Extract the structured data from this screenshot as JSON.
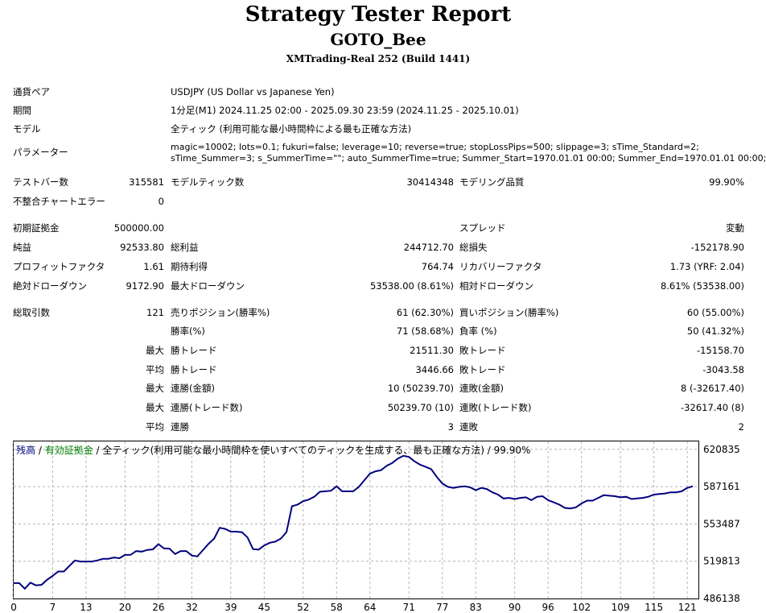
{
  "report": {
    "title": "Strategy Tester Report",
    "ea_name": "GOTO_Bee",
    "server": "XMTrading-Real 252 (Build 1441)"
  },
  "info": {
    "symbol_label": "通貨ペア",
    "symbol_value": "USDJPY (US Dollar vs Japanese Yen)",
    "period_label": "期間",
    "period_value": "1分足(M1) 2024.11.25 02:00 - 2025.09.30 23:59 (2024.11.25 - 2025.10.01)",
    "model_label": "モデル",
    "model_value": "全ティック (利用可能な最小時間枠による最も正確な方法)",
    "params_label": "パラメーター",
    "params_line1": "magic=10002; lots=0.1; fukuri=false; leverage=10; reverse=true; stopLossPips=500; slippage=3; sTime_Standard=2;",
    "params_line2": "sTime_Summer=3; s_SummerTime=\"\"; auto_SummerTime=true; Summer_Start=1970.01.01 00:00; Summer_End=1970.01.01 00:00;"
  },
  "stats": {
    "bars_label": "テストバー数",
    "bars_value": "315581",
    "ticks_label": "モデルティック数",
    "ticks_value": "30414348",
    "quality_label": "モデリング品質",
    "quality_value": "99.90%",
    "mismatch_label": "不整合チャートエラー",
    "mismatch_value": "0",
    "deposit_label": "初期証拠金",
    "deposit_value": "500000.00",
    "spread_label": "スプレッド",
    "spread_value": "変動",
    "net_label": "純益",
    "net_value": "92533.80",
    "gross_profit_label": "総利益",
    "gross_profit_value": "244712.70",
    "gross_loss_label": "総損失",
    "gross_loss_value": "-152178.90",
    "pf_label": "プロフィットファクタ",
    "pf_value": "1.61",
    "payoff_label": "期待利得",
    "payoff_value": "764.74",
    "recovery_label": "リカバリーファクタ",
    "recovery_value": "1.73 (YRF: 2.04)",
    "abs_dd_label": "絶対ドローダウン",
    "abs_dd_value": "9172.90",
    "max_dd_label": "最大ドローダウン",
    "max_dd_value": "53538.00 (8.61%)",
    "rel_dd_label": "相対ドローダウン",
    "rel_dd_value": "8.61% (53538.00)",
    "trades_label": "総取引数",
    "trades_value": "121",
    "short_label": "売りポジション(勝率%)",
    "short_value": "61 (62.30%)",
    "long_label": "買いポジション(勝率%)",
    "long_value": "60 (55.00%)",
    "win_rate_label": "勝率(%)",
    "win_rate_value": "71 (58.68%)",
    "loss_rate_label": "負率 (%)",
    "loss_rate_value": "50 (41.32%)",
    "max_word": "最大",
    "avg_word": "平均",
    "win_trade_label": "勝トレード",
    "loss_trade_label": "敗トレード",
    "max_win_value": "21511.30",
    "max_loss_value": "-15158.70",
    "avg_win_value": "3446.66",
    "avg_loss_value": "-3043.58",
    "cons_win_amt_label": "連勝(金額)",
    "cons_win_amt_value": "10 (50239.70)",
    "cons_loss_amt_label": "連敗(金額)",
    "cons_loss_amt_value": "8 (-32617.40)",
    "cons_win_cnt_label": "連勝(トレード数)",
    "cons_win_cnt_value": "50239.70 (10)",
    "cons_loss_cnt_label": "連敗(トレード数)",
    "cons_loss_cnt_value": "-32617.40 (8)",
    "avg_cons_win_label": "連勝",
    "avg_cons_win_value": "3",
    "avg_cons_loss_label": "連敗",
    "avg_cons_loss_value": "2"
  },
  "chart_data": {
    "type": "line",
    "legend": {
      "balance": "残高",
      "sep1": " / ",
      "equity": "有効証拠金",
      "sep2": " / ",
      "model": "全ティック(利用可能な最小時間枠を使いすべてのティックを生成する、最も正確な方法)",
      "sep3": " / ",
      "quality": "99.90%"
    },
    "colors": {
      "balance": "#00007f",
      "equity": "#008000",
      "grid": "#b4b4b4"
    },
    "ylim": [
      486138,
      628000
    ],
    "yticks": [
      "486138",
      "519813",
      "553487",
      "587161",
      "620835"
    ],
    "xlim": [
      0,
      123
    ],
    "xticks": [
      "0",
      "7",
      "13",
      "20",
      "26",
      "32",
      "39",
      "45",
      "52",
      "58",
      "64",
      "71",
      "77",
      "83",
      "90",
      "96",
      "102",
      "109",
      "115",
      "121"
    ],
    "x": [
      0,
      1,
      2,
      3,
      4,
      5,
      6,
      7,
      8,
      9,
      10,
      11,
      12,
      13,
      14,
      15,
      16,
      17,
      18,
      19,
      20,
      21,
      22,
      23,
      24,
      25,
      26,
      27,
      28,
      29,
      30,
      31,
      32,
      33,
      34,
      35,
      36,
      37,
      38,
      39,
      40,
      41,
      42,
      43,
      44,
      45,
      46,
      47,
      48,
      49,
      50,
      51,
      52,
      53,
      54,
      55,
      56,
      57,
      58,
      59,
      60,
      61,
      62,
      63,
      64,
      65,
      66,
      67,
      68,
      69,
      70,
      71,
      72,
      73,
      74,
      75,
      76,
      77,
      78,
      79,
      80,
      81,
      82,
      83,
      84,
      85,
      86,
      87,
      88,
      89,
      90,
      91,
      92,
      93,
      94,
      95,
      96,
      97,
      98,
      99,
      100,
      101,
      102,
      103,
      104,
      105,
      106,
      107,
      108,
      109,
      110,
      111,
      112,
      113,
      114,
      115,
      116,
      117,
      118,
      119,
      120,
      121,
      122
    ],
    "series": [
      {
        "values": [
          500000,
          500000,
          495000,
          500500,
          498000,
          498500,
          503000,
          506500,
          510500,
          510500,
          515500,
          520500,
          519500,
          519500,
          519500,
          520500,
          522000,
          522000,
          523200,
          522500,
          525500,
          525600,
          529000,
          528500,
          530000,
          530500,
          535200,
          531400,
          531200,
          526300,
          529000,
          529000,
          524900,
          524200,
          529800,
          535500,
          540200,
          550000,
          549000,
          546500,
          546500,
          546000,
          541300,
          530700,
          530300,
          534000,
          536500,
          537500,
          540300,
          546000,
          569500,
          571000,
          574000,
          575500,
          578000,
          582500,
          583000,
          583500,
          587500,
          583000,
          583000,
          583000,
          587000,
          593000,
          599000,
          601000,
          602000,
          606000,
          608500,
          612500,
          615000,
          614000,
          610000,
          607000,
          605000,
          603000,
          596000,
          590000,
          587000,
          586000,
          587000,
          587500,
          586500,
          584000,
          586000,
          585000,
          582000,
          580000,
          576500,
          577000,
          576000,
          577000,
          577500,
          575000,
          578000,
          578500,
          575000,
          573000,
          571000,
          568000,
          567500,
          568500,
          572000,
          574500,
          574500,
          577000,
          579500,
          579000,
          578500,
          577500,
          578000,
          576000,
          576500,
          577000,
          578000,
          580000,
          580500,
          581000,
          582000,
          582000,
          583000,
          586000,
          587500
        ]
      }
    ]
  }
}
